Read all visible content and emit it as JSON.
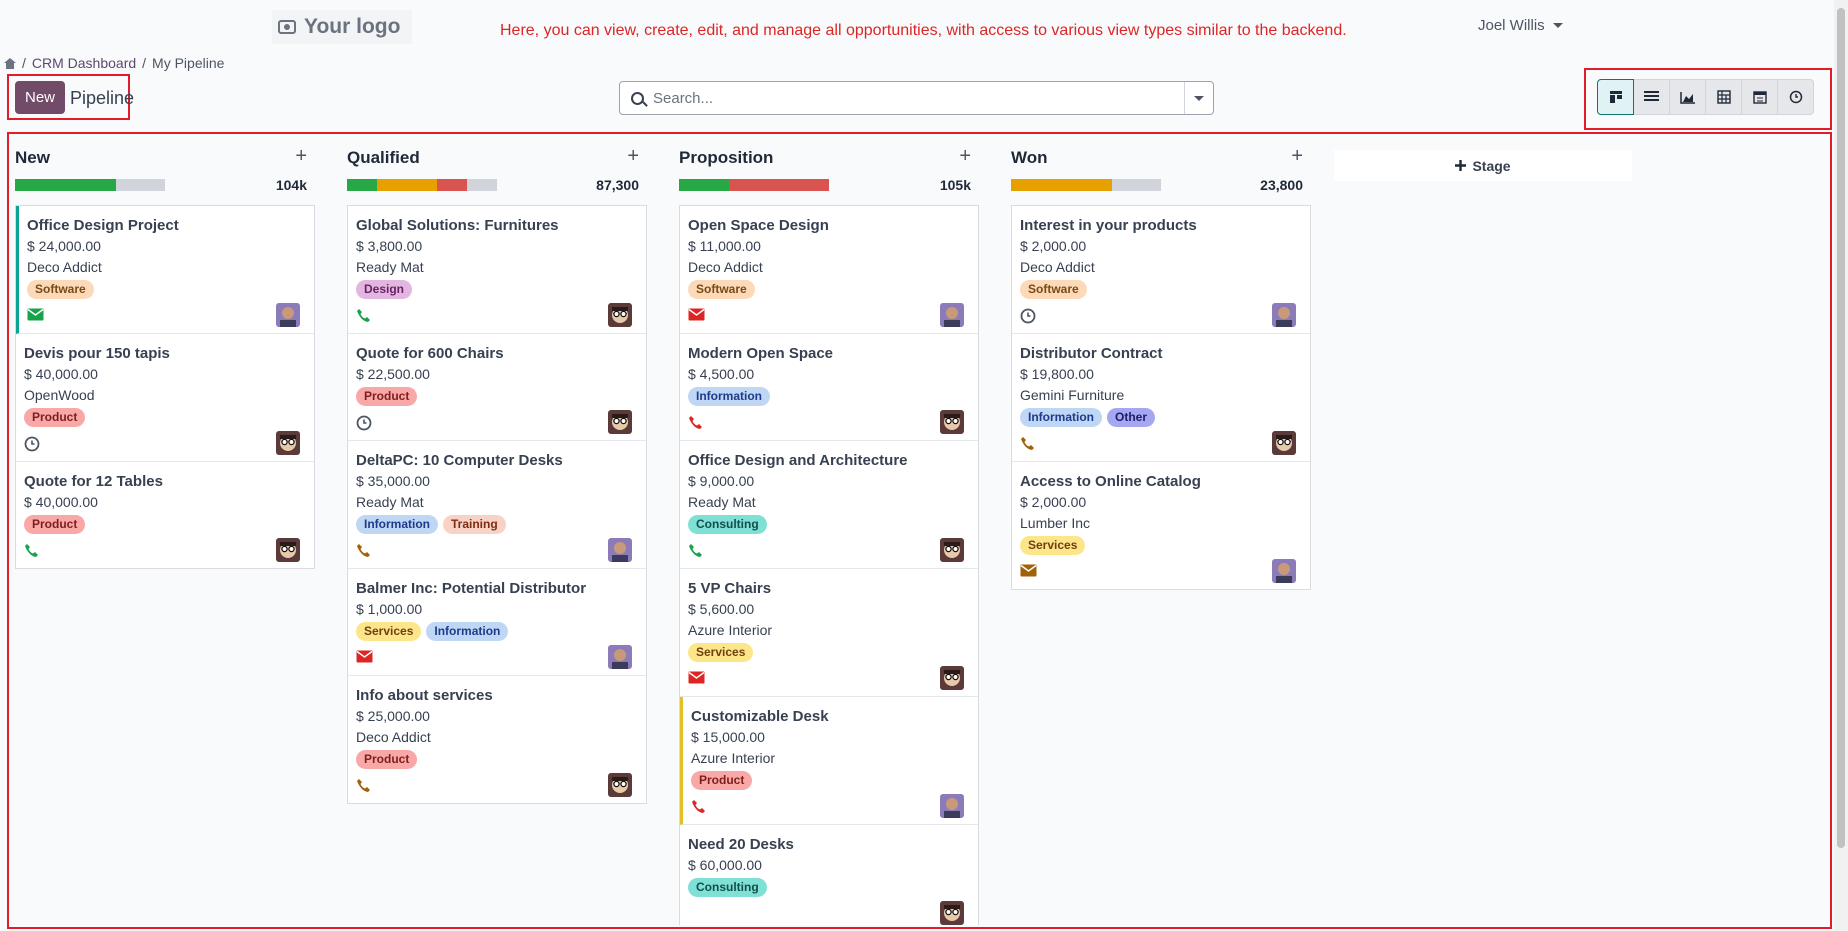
{
  "header": {
    "logo_text": "Your logo",
    "banner": "Here, you can view, create, edit, and manage all opportunities, with access to various view types similar to the backend.",
    "user_name": "Joel Willis"
  },
  "breadcrumb": {
    "sep1": "/",
    "item1": "CRM Dashboard",
    "sep2": "/",
    "item2": "My Pipeline"
  },
  "control": {
    "new_label": "New",
    "title": "Pipeline"
  },
  "search": {
    "placeholder": "Search..."
  },
  "views": [
    "kanban-icon",
    "list-icon",
    "graph-icon",
    "pivot-icon",
    "calendar-icon",
    "activity-icon"
  ],
  "stage_add_label": "Stage",
  "colors": {
    "brand": "#714b67",
    "success": "#28a745",
    "warning": "#e6a000",
    "danger": "#d9534f",
    "muted": "#d1d5db",
    "highlight": "#e11d2b"
  },
  "columns": [
    {
      "title": "New",
      "total": "104k",
      "progress": [
        {
          "color": "#28a745",
          "fraction": 0.67
        }
      ],
      "cards": [
        {
          "title": "Office Design Project",
          "amount": "$ 24,000.00",
          "company": "Deco Addict",
          "tags": [
            {
              "label": "Software",
              "bg": "#fcd9b8",
              "fg": "#7a4a12"
            }
          ],
          "activity": "envelope-icon",
          "activity_color": "#16a34a",
          "accent": "teal",
          "avatar": "avatar-purple"
        },
        {
          "title": "Devis pour 150 tapis",
          "amount": "$ 40,000.00",
          "company": "OpenWood",
          "tags": [
            {
              "label": "Product",
              "bg": "#f9a8a8",
              "fg": "#7f1d1d"
            }
          ],
          "activity": "clock-icon",
          "activity_color": "#4b5563",
          "avatar": "avatar-glasses"
        },
        {
          "title": "Quote for 12 Tables",
          "amount": "$ 40,000.00",
          "company": "",
          "tags": [
            {
              "label": "Product",
              "bg": "#f9a8a8",
              "fg": "#7f1d1d"
            }
          ],
          "activity": "phone-icon",
          "activity_color": "#16a34a",
          "avatar": "avatar-glasses"
        }
      ]
    },
    {
      "title": "Qualified",
      "total": "87,300",
      "progress": [
        {
          "color": "#28a745",
          "fraction": 0.2
        },
        {
          "color": "#e6a000",
          "fraction": 0.4
        },
        {
          "color": "#d9534f",
          "fraction": 0.2
        }
      ],
      "cards": [
        {
          "title": "Global Solutions: Furnitures",
          "amount": "$ 3,800.00",
          "company": "Ready Mat",
          "tags": [
            {
              "label": "Design",
              "bg": "#e3b6e0",
              "fg": "#6b1f66"
            }
          ],
          "activity": "phone-icon",
          "activity_color": "#16a34a",
          "avatar": "avatar-glasses"
        },
        {
          "title": "Quote for 600 Chairs",
          "amount": "$ 22,500.00",
          "company": "",
          "tags": [
            {
              "label": "Product",
              "bg": "#f9a8a8",
              "fg": "#7f1d1d"
            }
          ],
          "activity": "clock-icon",
          "activity_color": "#4b5563",
          "avatar": "avatar-glasses"
        },
        {
          "title": "DeltaPC: 10 Computer Desks",
          "amount": "$ 35,000.00",
          "company": "Ready Mat",
          "tags": [
            {
              "label": "Information",
              "bg": "#bfd7f5",
              "fg": "#1e3a8a"
            },
            {
              "label": "Training",
              "bg": "#f8d3c5",
              "fg": "#7c2d12"
            }
          ],
          "activity": "phone-icon",
          "activity_color": "#a16207",
          "avatar": "avatar-purple"
        },
        {
          "title": "Balmer Inc: Potential Distributor",
          "amount": "$ 1,000.00",
          "company": "",
          "tags": [
            {
              "label": "Services",
              "bg": "#fde68a",
              "fg": "#713f12"
            },
            {
              "label": "Information",
              "bg": "#bfd7f5",
              "fg": "#1e3a8a"
            }
          ],
          "activity": "envelope-icon",
          "activity_color": "#dc2626",
          "avatar": "avatar-purple"
        },
        {
          "title": "Info about services",
          "amount": "$ 25,000.00",
          "company": "Deco Addict",
          "tags": [
            {
              "label": "Product",
              "bg": "#f9a8a8",
              "fg": "#7f1d1d"
            }
          ],
          "activity": "phone-icon",
          "activity_color": "#a16207",
          "avatar": "avatar-glasses"
        }
      ]
    },
    {
      "title": "Proposition",
      "total": "105k",
      "progress": [
        {
          "color": "#28a745",
          "fraction": 0.33
        },
        {
          "color": "#d9534f",
          "fraction": 0.67
        }
      ],
      "cards": [
        {
          "title": "Open Space Design",
          "amount": "$ 11,000.00",
          "company": "Deco Addict",
          "tags": [
            {
              "label": "Software",
              "bg": "#fcd9b8",
              "fg": "#7a4a12"
            }
          ],
          "activity": "envelope-icon",
          "activity_color": "#dc2626",
          "avatar": "avatar-purple"
        },
        {
          "title": "Modern Open Space",
          "amount": "$ 4,500.00",
          "company": "",
          "tags": [
            {
              "label": "Information",
              "bg": "#bfd7f5",
              "fg": "#1e3a8a"
            }
          ],
          "activity": "phone-icon",
          "activity_color": "#dc2626",
          "avatar": "avatar-glasses"
        },
        {
          "title": "Office Design and Architecture",
          "amount": "$ 9,000.00",
          "company": "Ready Mat",
          "tags": [
            {
              "label": "Consulting",
              "bg": "#7fe0d6",
              "fg": "#134e4a"
            }
          ],
          "activity": "phone-icon",
          "activity_color": "#16a34a",
          "avatar": "avatar-glasses"
        },
        {
          "title": "5 VP Chairs",
          "amount": "$ 5,600.00",
          "company": "Azure Interior",
          "tags": [
            {
              "label": "Services",
              "bg": "#fde68a",
              "fg": "#713f12"
            }
          ],
          "activity": "envelope-icon",
          "activity_color": "#dc2626",
          "avatar": "avatar-glasses"
        },
        {
          "title": "Customizable Desk",
          "amount": "$ 15,000.00",
          "company": "Azure Interior",
          "tags": [
            {
              "label": "Product",
              "bg": "#f9a8a8",
              "fg": "#7f1d1d"
            }
          ],
          "activity": "phone-icon",
          "activity_color": "#dc2626",
          "accent": "yellow",
          "avatar": "avatar-purple"
        },
        {
          "title": "Need 20 Desks",
          "amount": "$ 60,000.00",
          "company": "",
          "tags": [
            {
              "label": "Consulting",
              "bg": "#7fe0d6",
              "fg": "#134e4a"
            }
          ],
          "activity": "",
          "activity_color": "#a16207",
          "avatar": "avatar-glasses"
        }
      ]
    },
    {
      "title": "Won",
      "total": "23,800",
      "progress": [
        {
          "color": "#e6a000",
          "fraction": 0.67
        }
      ],
      "cards": [
        {
          "title": "Interest in your products",
          "amount": "$ 2,000.00",
          "company": "Deco Addict",
          "tags": [
            {
              "label": "Software",
              "bg": "#fcd9b8",
              "fg": "#7a4a12"
            }
          ],
          "activity": "clock-icon",
          "activity_color": "#4b5563",
          "avatar": "avatar-purple"
        },
        {
          "title": "Distributor Contract",
          "amount": "$ 19,800.00",
          "company": "Gemini Furniture",
          "tags": [
            {
              "label": "Information",
              "bg": "#bfd7f5",
              "fg": "#1e3a8a"
            },
            {
              "label": "Other",
              "bg": "#a5a8f0",
              "fg": "#1e1b6b"
            }
          ],
          "activity": "phone-icon",
          "activity_color": "#a16207",
          "avatar": "avatar-glasses"
        },
        {
          "title": "Access to Online Catalog",
          "amount": "$ 2,000.00",
          "company": "Lumber Inc",
          "tags": [
            {
              "label": "Services",
              "bg": "#fde68a",
              "fg": "#713f12"
            }
          ],
          "activity": "envelope-icon",
          "activity_color": "#a16207",
          "avatar": "avatar-purple"
        }
      ]
    }
  ]
}
